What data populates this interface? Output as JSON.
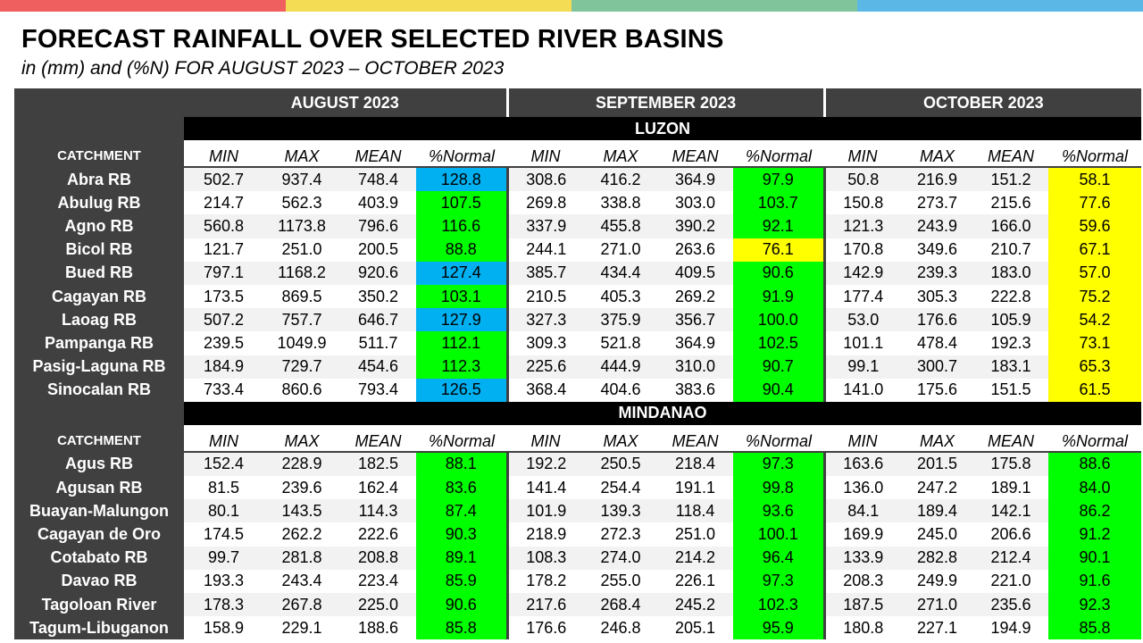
{
  "colors": {
    "stripes": [
      "#ef5f5f",
      "#f5dc55",
      "#7fc49b",
      "#5bb8e6"
    ],
    "header_dark": "#404040",
    "region_bar": "#000000",
    "above_normal": "#00b0f0",
    "near_normal": "#00ff00",
    "below_normal": "#ffff00"
  },
  "title": "FORECAST RAINFALL OVER SELECTED RIVER BASINS",
  "subtitle": "in (mm) and (%N) FOR AUGUST 2023 – OCTOBER 2023",
  "months": [
    "AUGUST 2023",
    "SEPTEMBER 2023",
    "OCTOBER 2023"
  ],
  "catchment_label": "CATCHMENT",
  "col_headers": [
    "MIN",
    "MAX",
    "MEAN",
    "%Normal"
  ],
  "regions": [
    {
      "name": "LUZON",
      "rows": [
        {
          "name": "Abra RB",
          "aug": [
            "502.7",
            "937.4",
            "748.4",
            "128.8"
          ],
          "aug_color": "#00b0f0",
          "sep": [
            "308.6",
            "416.2",
            "364.9",
            "97.9"
          ],
          "sep_color": "#00ff00",
          "oct": [
            "50.8",
            "216.9",
            "151.2",
            "58.1"
          ],
          "oct_color": "#ffff00"
        },
        {
          "name": "Abulug RB",
          "aug": [
            "214.7",
            "562.3",
            "403.9",
            "107.5"
          ],
          "aug_color": "#00ff00",
          "sep": [
            "269.8",
            "338.8",
            "303.0",
            "103.7"
          ],
          "sep_color": "#00ff00",
          "oct": [
            "150.8",
            "273.7",
            "215.6",
            "77.6"
          ],
          "oct_color": "#ffff00"
        },
        {
          "name": "Agno RB",
          "aug": [
            "560.8",
            "1173.8",
            "796.6",
            "116.6"
          ],
          "aug_color": "#00ff00",
          "sep": [
            "337.9",
            "455.8",
            "390.2",
            "92.1"
          ],
          "sep_color": "#00ff00",
          "oct": [
            "121.3",
            "243.9",
            "166.0",
            "59.6"
          ],
          "oct_color": "#ffff00"
        },
        {
          "name": "Bicol RB",
          "aug": [
            "121.7",
            "251.0",
            "200.5",
            "88.8"
          ],
          "aug_color": "#00ff00",
          "sep": [
            "244.1",
            "271.0",
            "263.6",
            "76.1"
          ],
          "sep_color": "#ffff00",
          "oct": [
            "170.8",
            "349.6",
            "210.7",
            "67.1"
          ],
          "oct_color": "#ffff00"
        },
        {
          "name": "Bued RB",
          "aug": [
            "797.1",
            "1168.2",
            "920.6",
            "127.4"
          ],
          "aug_color": "#00b0f0",
          "sep": [
            "385.7",
            "434.4",
            "409.5",
            "90.6"
          ],
          "sep_color": "#00ff00",
          "oct": [
            "142.9",
            "239.3",
            "183.0",
            "57.0"
          ],
          "oct_color": "#ffff00"
        },
        {
          "name": "Cagayan RB",
          "aug": [
            "173.5",
            "869.5",
            "350.2",
            "103.1"
          ],
          "aug_color": "#00ff00",
          "sep": [
            "210.5",
            "405.3",
            "269.2",
            "91.9"
          ],
          "sep_color": "#00ff00",
          "oct": [
            "177.4",
            "305.3",
            "222.8",
            "75.2"
          ],
          "oct_color": "#ffff00"
        },
        {
          "name": "Laoag RB",
          "aug": [
            "507.2",
            "757.7",
            "646.7",
            "127.9"
          ],
          "aug_color": "#00b0f0",
          "sep": [
            "327.3",
            "375.9",
            "356.7",
            "100.0"
          ],
          "sep_color": "#00ff00",
          "oct": [
            "53.0",
            "176.6",
            "105.9",
            "54.2"
          ],
          "oct_color": "#ffff00"
        },
        {
          "name": "Pampanga RB",
          "aug": [
            "239.5",
            "1049.9",
            "511.7",
            "112.1"
          ],
          "aug_color": "#00ff00",
          "sep": [
            "309.3",
            "521.8",
            "364.9",
            "102.5"
          ],
          "sep_color": "#00ff00",
          "oct": [
            "101.1",
            "478.4",
            "192.3",
            "73.1"
          ],
          "oct_color": "#ffff00"
        },
        {
          "name": "Pasig-Laguna RB",
          "aug": [
            "184.9",
            "729.7",
            "454.6",
            "112.3"
          ],
          "aug_color": "#00ff00",
          "sep": [
            "225.6",
            "444.9",
            "310.0",
            "90.7"
          ],
          "sep_color": "#00ff00",
          "oct": [
            "99.1",
            "300.7",
            "183.1",
            "65.3"
          ],
          "oct_color": "#ffff00"
        },
        {
          "name": "Sinocalan RB",
          "aug": [
            "733.4",
            "860.6",
            "793.4",
            "126.5"
          ],
          "aug_color": "#00b0f0",
          "sep": [
            "368.4",
            "404.6",
            "383.6",
            "90.4"
          ],
          "sep_color": "#00ff00",
          "oct": [
            "141.0",
            "175.6",
            "151.5",
            "61.5"
          ],
          "oct_color": "#ffff00"
        }
      ]
    },
    {
      "name": "MINDANAO",
      "rows": [
        {
          "name": "Agus RB",
          "aug": [
            "152.4",
            "228.9",
            "182.5",
            "88.1"
          ],
          "aug_color": "#00ff00",
          "sep": [
            "192.2",
            "250.5",
            "218.4",
            "97.3"
          ],
          "sep_color": "#00ff00",
          "oct": [
            "163.6",
            "201.5",
            "175.8",
            "88.6"
          ],
          "oct_color": "#00ff00"
        },
        {
          "name": "Agusan RB",
          "aug": [
            "81.5",
            "239.6",
            "162.4",
            "83.6"
          ],
          "aug_color": "#00ff00",
          "sep": [
            "141.4",
            "254.4",
            "191.1",
            "99.8"
          ],
          "sep_color": "#00ff00",
          "oct": [
            "136.0",
            "247.2",
            "189.1",
            "84.0"
          ],
          "oct_color": "#00ff00"
        },
        {
          "name": "Buayan-Malungon",
          "aug": [
            "80.1",
            "143.5",
            "114.3",
            "87.4"
          ],
          "aug_color": "#00ff00",
          "sep": [
            "101.9",
            "139.3",
            "118.4",
            "93.6"
          ],
          "sep_color": "#00ff00",
          "oct": [
            "84.1",
            "189.4",
            "142.1",
            "86.2"
          ],
          "oct_color": "#00ff00"
        },
        {
          "name": "Cagayan de Oro",
          "aug": [
            "174.5",
            "262.2",
            "222.6",
            "90.3"
          ],
          "aug_color": "#00ff00",
          "sep": [
            "218.9",
            "272.3",
            "251.0",
            "100.1"
          ],
          "sep_color": "#00ff00",
          "oct": [
            "169.9",
            "245.0",
            "206.6",
            "91.2"
          ],
          "oct_color": "#00ff00"
        },
        {
          "name": "Cotabato RB",
          "aug": [
            "99.7",
            "281.8",
            "208.8",
            "89.1"
          ],
          "aug_color": "#00ff00",
          "sep": [
            "108.3",
            "274.0",
            "214.2",
            "96.4"
          ],
          "sep_color": "#00ff00",
          "oct": [
            "133.9",
            "282.8",
            "212.4",
            "90.1"
          ],
          "oct_color": "#00ff00"
        },
        {
          "name": "Davao RB",
          "aug": [
            "193.3",
            "243.4",
            "223.4",
            "85.9"
          ],
          "aug_color": "#00ff00",
          "sep": [
            "178.2",
            "255.0",
            "226.1",
            "97.3"
          ],
          "sep_color": "#00ff00",
          "oct": [
            "208.3",
            "249.9",
            "221.0",
            "91.6"
          ],
          "oct_color": "#00ff00"
        },
        {
          "name": "Tagoloan River",
          "aug": [
            "178.3",
            "267.8",
            "225.0",
            "90.6"
          ],
          "aug_color": "#00ff00",
          "sep": [
            "217.6",
            "268.4",
            "245.2",
            "102.3"
          ],
          "sep_color": "#00ff00",
          "oct": [
            "187.5",
            "271.0",
            "235.6",
            "92.3"
          ],
          "oct_color": "#00ff00"
        },
        {
          "name": "Tagum-Libuganon",
          "aug": [
            "158.9",
            "229.1",
            "188.6",
            "85.8"
          ],
          "aug_color": "#00ff00",
          "sep": [
            "176.6",
            "246.8",
            "205.1",
            "95.9"
          ],
          "sep_color": "#00ff00",
          "oct": [
            "180.8",
            "227.1",
            "194.9",
            "85.8"
          ],
          "oct_color": "#00ff00"
        }
      ]
    }
  ]
}
